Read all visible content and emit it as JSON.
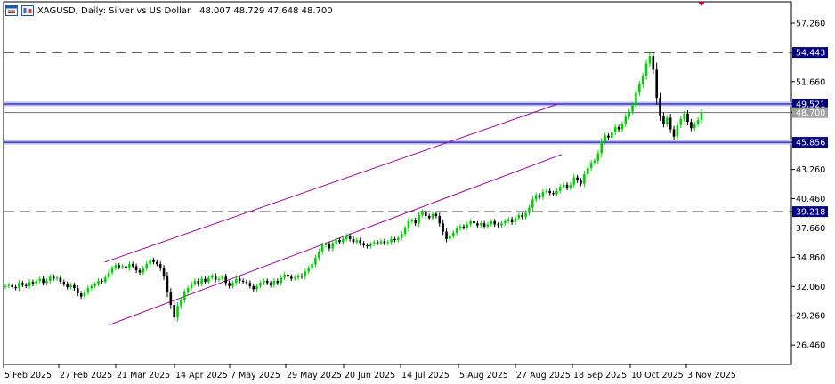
{
  "header": {
    "title": "XAGUSD, Daily:  Silver vs US Dollar",
    "ohlc": "48.007 48.729 47.648 48.700"
  },
  "colors": {
    "bull": "#00d000",
    "bear": "#000000",
    "channel": "#a000a0",
    "sr_line": "#000080",
    "sr_band": "#bcbcff",
    "axis": "#000000",
    "price_tag_bg": "#000080",
    "last_tag_bg": "#a0a0a0"
  },
  "chart_data": {
    "type": "candlestick",
    "symbol": "XAGUSD",
    "timeframe": "Daily",
    "ylim": [
      24.6,
      59.3
    ],
    "y_ticks": [
      "57.260",
      "54.443",
      "51.660",
      "49.521",
      "48.700",
      "45.856",
      "43.260",
      "40.460",
      "39.218",
      "37.660",
      "34.860",
      "32.060",
      "29.260",
      "26.460"
    ],
    "x_tick_labels": [
      "5 Feb 2025",
      "27 Feb 2025",
      "21 Mar 2025",
      "14 Apr 2025",
      "7 May 2025",
      "29 May 2025",
      "20 Jun 2025",
      "14 Jul 2025",
      "5 Aug 2025",
      "27 Aug 2025",
      "18 Sep 2025",
      "10 Oct 2025",
      "3 Nov 2025"
    ],
    "levels": [
      {
        "price": 54.443,
        "label": "54.443",
        "style": "dashed"
      },
      {
        "price": 49.521,
        "label": "49.521",
        "style": "band"
      },
      {
        "price": 45.856,
        "label": "45.856",
        "style": "band"
      },
      {
        "price": 39.218,
        "label": "39.218",
        "style": "dashed"
      }
    ],
    "last_price": {
      "price": 48.7,
      "label": "48.700"
    },
    "channel": {
      "upper": {
        "from": {
          "bar": 118,
          "price": 34.4
        },
        "to": {
          "bar": 626,
          "price": 49.5
        }
      },
      "lower": {
        "from": {
          "bar": 123,
          "price": 28.4
        },
        "to": {
          "bar": 631,
          "price": 44.7
        }
      }
    },
    "closes": [
      32.1,
      32.2,
      32.0,
      31.9,
      32.4,
      32.2,
      32.1,
      32.5,
      32.3,
      32.6,
      32.8,
      32.4,
      32.6,
      33.0,
      32.8,
      32.9,
      32.5,
      32.3,
      32.0,
      32.2,
      31.9,
      31.4,
      31.1,
      31.5,
      31.9,
      32.1,
      32.3,
      32.6,
      32.5,
      32.9,
      33.4,
      33.8,
      34.1,
      33.9,
      34.0,
      33.8,
      34.2,
      34.0,
      33.6,
      33.4,
      33.8,
      34.2,
      34.6,
      34.4,
      34.2,
      33.8,
      33.0,
      31.5,
      30.3,
      29.1,
      30.2,
      30.8,
      31.5,
      31.9,
      32.3,
      32.6,
      32.3,
      32.8,
      32.5,
      32.9,
      33.1,
      32.7,
      32.8,
      33.0,
      32.4,
      32.1,
      32.4,
      32.8,
      32.6,
      32.5,
      32.4,
      32.1,
      31.8,
      32.1,
      32.4,
      32.6,
      32.4,
      32.2,
      32.6,
      32.4,
      32.9,
      33.2,
      33.0,
      32.8,
      32.9,
      33.1,
      33.0,
      33.5,
      33.8,
      34.2,
      34.8,
      35.4,
      36.0,
      36.1,
      35.7,
      36.2,
      36.5,
      36.3,
      36.6,
      36.9,
      36.6,
      36.3,
      36.5,
      36.2,
      36.0,
      35.9,
      36.1,
      36.3,
      36.2,
      36.4,
      36.2,
      36.3,
      36.6,
      36.5,
      36.7,
      37.1,
      37.6,
      38.3,
      38.4,
      38.1,
      38.9,
      39.2,
      38.8,
      38.6,
      39.0,
      38.8,
      38.1,
      37.3,
      36.6,
      36.9,
      37.2,
      37.6,
      37.8,
      37.7,
      38.0,
      38.3,
      38.1,
      37.9,
      38.1,
      37.8,
      38.0,
      38.3,
      38.0,
      37.9,
      38.1,
      38.3,
      38.5,
      38.2,
      38.6,
      38.9,
      38.7,
      39.1,
      39.6,
      40.4,
      40.8,
      40.6,
      41.1,
      41.2,
      41.0,
      40.9,
      41.2,
      41.6,
      41.8,
      41.5,
      41.8,
      42.5,
      42.2,
      41.9,
      42.8,
      43.4,
      43.9,
      44.1,
      44.8,
      45.9,
      46.5,
      46.3,
      46.8,
      47.3,
      47.1,
      47.6,
      48.3,
      48.8,
      49.4,
      50.6,
      51.4,
      52.2,
      53.4,
      54.1,
      52.8,
      50.1,
      48.4,
      47.6,
      48.2,
      47.1,
      46.4,
      47.5,
      48.1,
      48.6,
      47.8,
      47.2,
      47.6,
      48.0,
      48.7
    ]
  }
}
